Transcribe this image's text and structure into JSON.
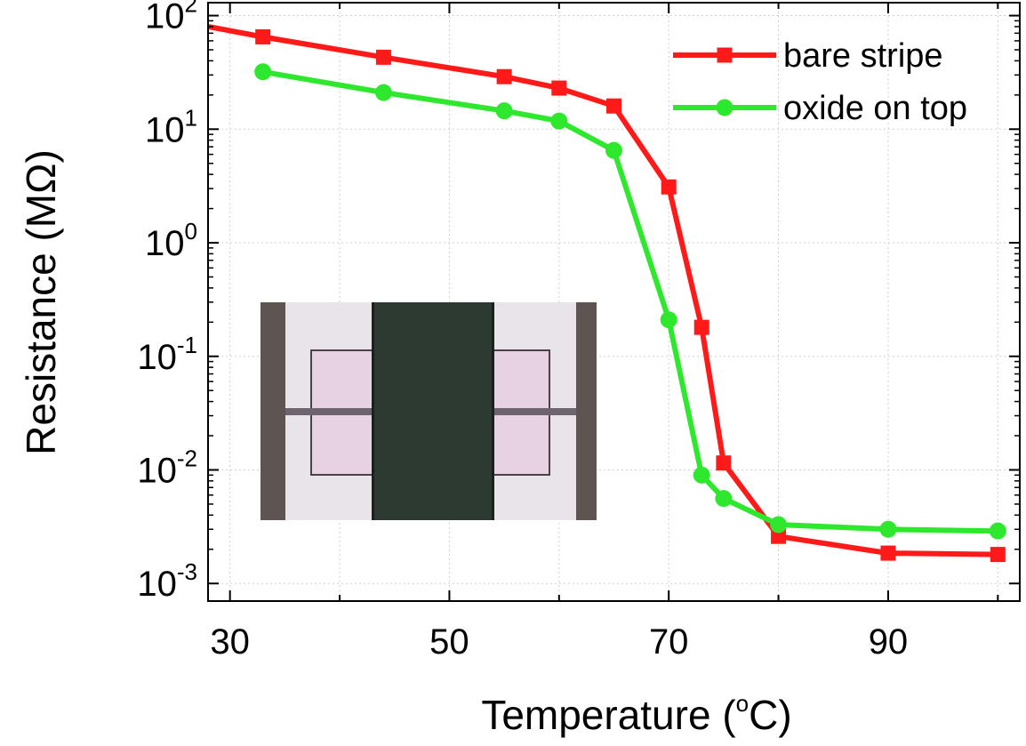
{
  "chart_data": {
    "type": "line",
    "title": "",
    "xlabel": {
      "prefix": "Temperature (",
      "sup": "o",
      "suffix": "C)"
    },
    "ylabel": "Resistance (MΩ)",
    "x_scale": "linear",
    "y_scale": "log",
    "xlim": [
      28,
      102
    ],
    "ylim": [
      0.0007,
      130
    ],
    "x_ticks": [
      {
        "value": 30,
        "label": "30"
      },
      {
        "value": 50,
        "label": "50"
      },
      {
        "value": 70,
        "label": "70"
      },
      {
        "value": 90,
        "label": "90"
      }
    ],
    "y_ticks": [
      {
        "value": 0.001,
        "base": "10",
        "exp": "-3"
      },
      {
        "value": 0.01,
        "base": "10",
        "exp": "-2"
      },
      {
        "value": 0.1,
        "base": "10",
        "exp": "-1"
      },
      {
        "value": 1,
        "base": "10",
        "exp": "0"
      },
      {
        "value": 10,
        "base": "10",
        "exp": "1"
      },
      {
        "value": 100,
        "base": "10",
        "exp": "2"
      }
    ],
    "grid": true,
    "legend_position": "top-right",
    "series": [
      {
        "name": "bare stripe",
        "color": "#ff1a1a",
        "marker": "square",
        "x": [
          28,
          33,
          44,
          55,
          60,
          65,
          70,
          73,
          75,
          80,
          90,
          100
        ],
        "y": [
          80,
          65,
          43,
          29,
          23,
          16,
          3.1,
          0.18,
          0.0115,
          0.0026,
          0.00185,
          0.0018
        ]
      },
      {
        "name": "oxide on top",
        "color": "#2ee82e",
        "marker": "circle",
        "x": [
          33,
          44,
          55,
          60,
          65,
          70,
          73,
          75,
          80,
          90,
          100
        ],
        "y": [
          32,
          21,
          14.5,
          11.8,
          6.5,
          0.21,
          0.009,
          0.0056,
          0.0033,
          0.003,
          0.0029
        ]
      }
    ]
  },
  "inset": {
    "kind": "micrograph-photo"
  }
}
